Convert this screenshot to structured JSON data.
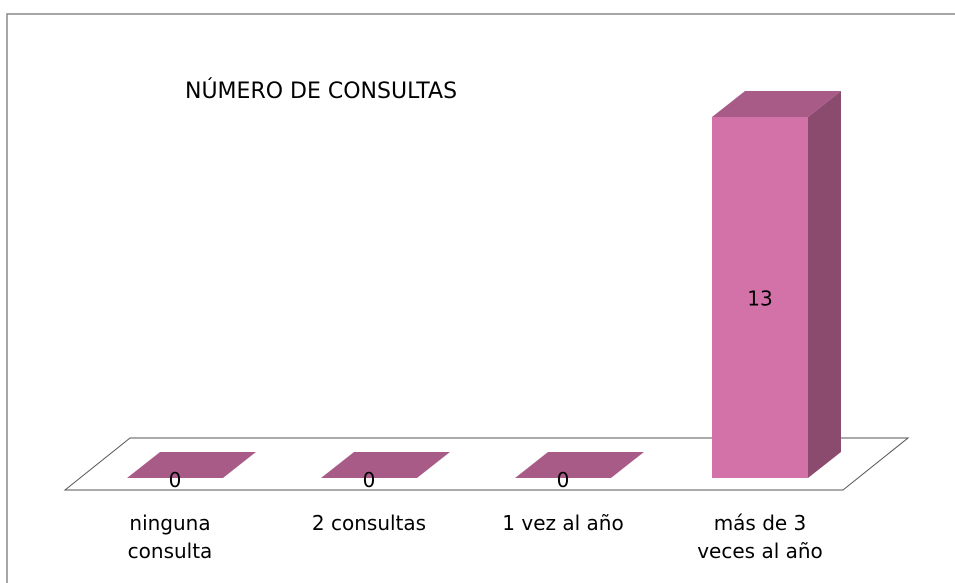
{
  "chart_data": {
    "type": "bar3d",
    "title": "NÚMERO DE CONSULTAS",
    "categories": [
      "ninguna consulta",
      "2 consultas",
      "1 vez al año",
      "más de 3 veces al año"
    ],
    "values": [
      0,
      0,
      0,
      13
    ],
    "color": "#d272a8"
  }
}
